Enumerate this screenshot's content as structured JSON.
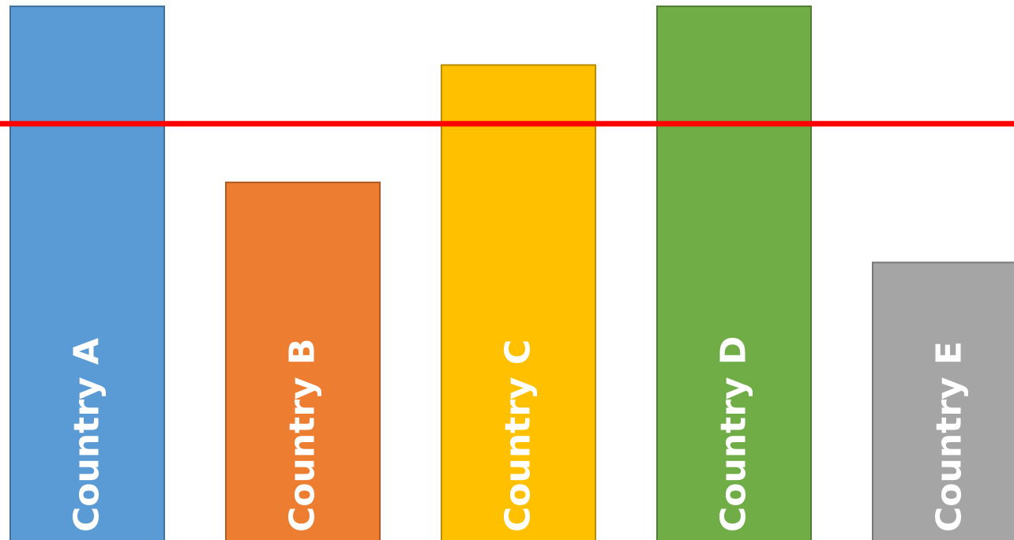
{
  "chart_data": {
    "type": "bar",
    "categories": [
      "Country A",
      "Country B",
      "Country C",
      "Country D",
      "Country E"
    ],
    "values": [
      100,
      67,
      89,
      100,
      52
    ],
    "colors": [
      "#5b9bd5",
      "#ed7d31",
      "#ffc000",
      "#70ad47",
      "#a5a5a5"
    ],
    "border_colors": [
      "#41719c",
      "#ae5a21",
      "#bc8c00",
      "#507e32",
      "#787878"
    ],
    "threshold": {
      "value": 78,
      "color": "#ff0000"
    },
    "ylim": [
      0,
      100
    ],
    "title": "",
    "xlabel": "",
    "ylabel": "",
    "grid": false,
    "legend": "none"
  }
}
